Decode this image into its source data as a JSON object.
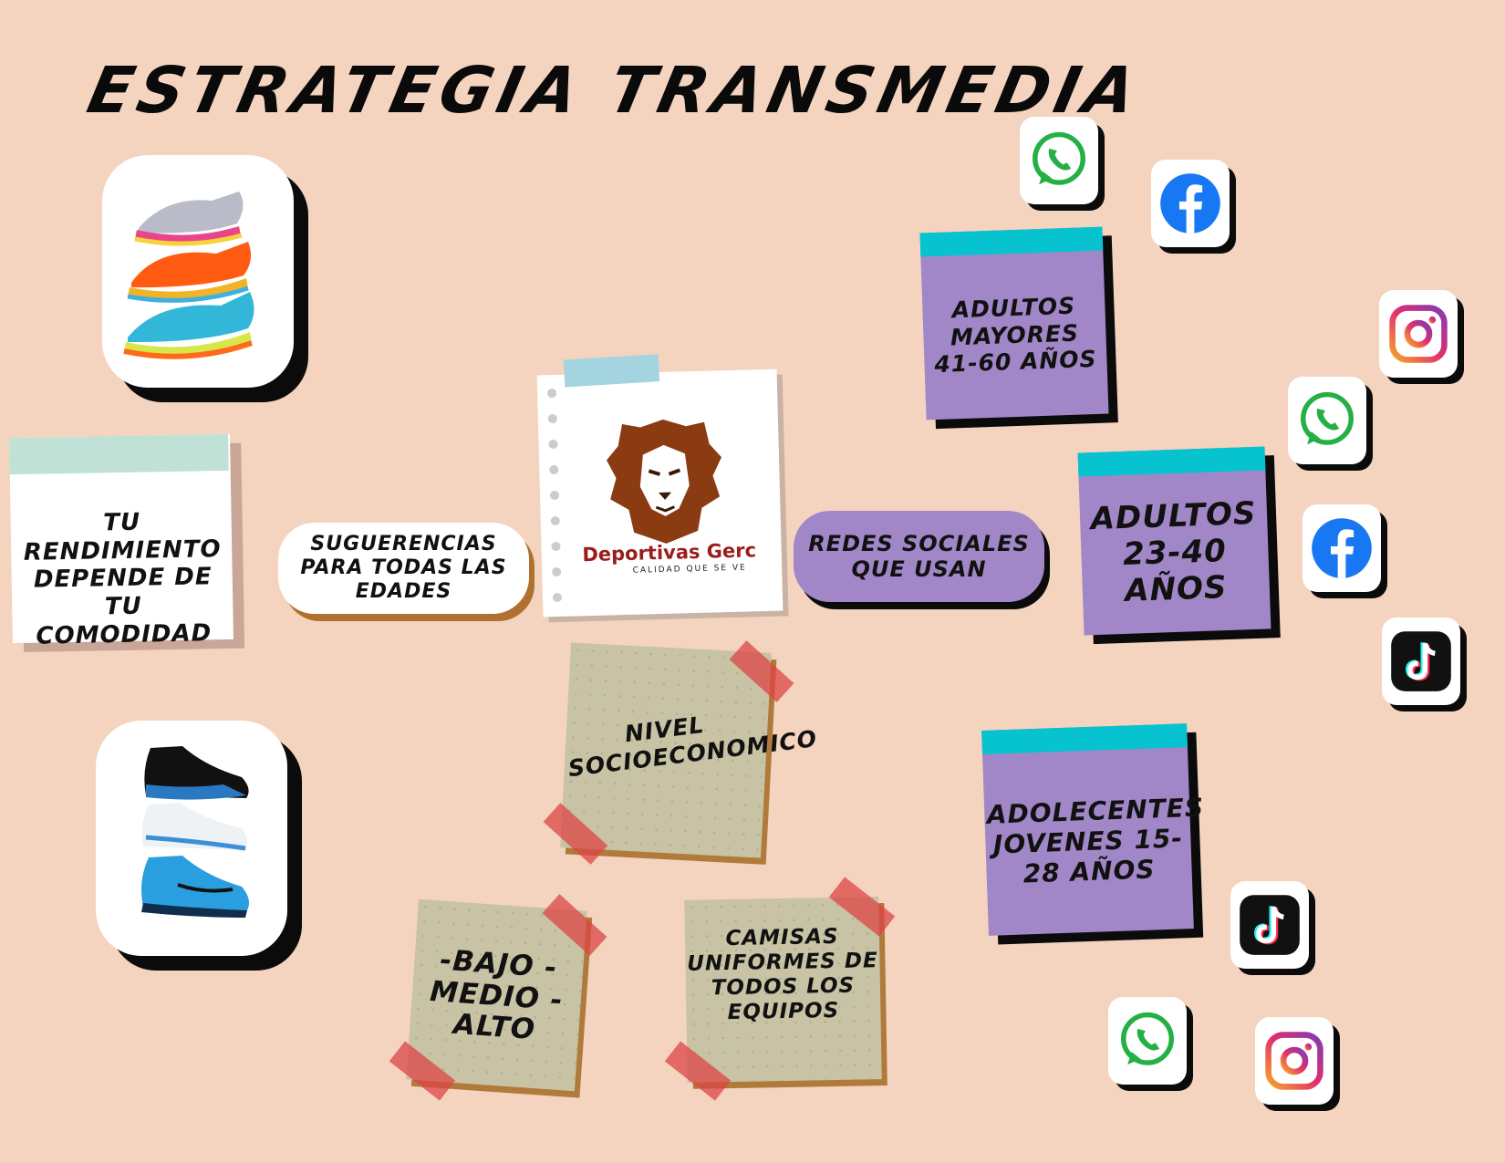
{
  "title": "ESTRATEGIA TRANSMEDIA",
  "note_comfort": "TU RENDIMIENTO DEPENDE DE TU COMODIDAD",
  "pill_suggestions": "SUGUERENCIAS PARA TODAS LAS EDADES",
  "brand": {
    "name": "Deportivas Gerc",
    "tagline": "CALIDAD QUE SE VE"
  },
  "pill_networks": "REDES SOCIALES QUE USAN",
  "groups": {
    "older": "ADULTOS MAYORES 41-60 AÑOS",
    "adults": "ADULTOS 23-40 AÑOS",
    "teens": "ADOLECENTES JOVENES 15-28 AÑOS"
  },
  "sticky": {
    "socio": "NIVEL SOCIOECONOMICO",
    "levels": "-BAJO -MEDIO -ALTO",
    "shirts": "CAMISAS UNIFORMES DE TODOS LOS EQUIPOS"
  },
  "colors": {
    "background": "#f4d3bf",
    "purple": "#a287c8",
    "cyan": "#06c3cf",
    "sticky": "#c7c3a4",
    "pill_shadow": "#b0702f"
  }
}
